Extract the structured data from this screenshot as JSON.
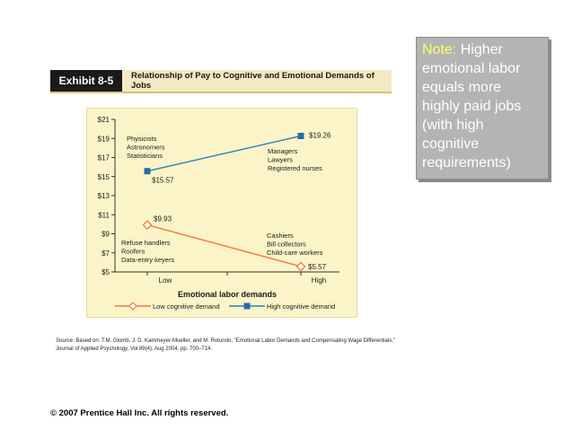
{
  "note": {
    "label": "Note:",
    "text": "Higher emotional labor equals more highly paid jobs (with high cognitive requirements)"
  },
  "exhibit": {
    "tag": "Exhibit 8-5",
    "title": "Relationship of Pay to Cognitive and Emotional Demands of Jobs"
  },
  "source": {
    "label": "Source:",
    "text": "Based on: T.M. Glomb, J. D. Kammeyer-Mueller, and M. Rotundo, \"Emotional Labor Demands and Compensating Wage Differentials,\" Journal of Applied Psychology, Vol 89(4), Aug 2004, pp. 700–714."
  },
  "copyright": "© 2007 Prentice Hall Inc. All rights reserved.",
  "colors": {
    "low_series": "#f07a3a",
    "high_series": "#2b7fb8",
    "high_marker": "#1f6fa8",
    "panel_bg": "#fbf4c8",
    "axis": "#333333"
  },
  "chart_data": {
    "type": "line",
    "xlabel": "Emotional labor demands",
    "ylabel": "",
    "categories": [
      "Low",
      "High"
    ],
    "ylim": [
      5,
      21
    ],
    "yticks": [
      5,
      7,
      9,
      11,
      13,
      15,
      17,
      19,
      21
    ],
    "ytick_labels": [
      "$5",
      "$7",
      "$9",
      "$11",
      "$13",
      "$15",
      "$17",
      "$19",
      "$21"
    ],
    "grid": false,
    "legend_position": "bottom",
    "series": [
      {
        "name": "Low cognitive demand",
        "values": [
          9.93,
          5.57
        ],
        "value_labels": [
          "$9.93",
          "$5.57"
        ],
        "marker": "diamond"
      },
      {
        "name": "High cognitive demand",
        "values": [
          15.57,
          19.26
        ],
        "value_labels": [
          "$15.57",
          "$19.26"
        ],
        "marker": "square"
      }
    ],
    "annotations": [
      {
        "lines": [
          "Physicists",
          "Astronomers",
          "Statisticians"
        ]
      },
      {
        "lines": [
          "Managers",
          "Lawyers",
          "Registered nurses"
        ]
      },
      {
        "lines": [
          "Refuse handlers",
          "Roofers",
          "Data-entry keyers"
        ]
      },
      {
        "lines": [
          "Cashiers",
          "Bill collectors",
          "Child-care workers"
        ]
      }
    ]
  }
}
